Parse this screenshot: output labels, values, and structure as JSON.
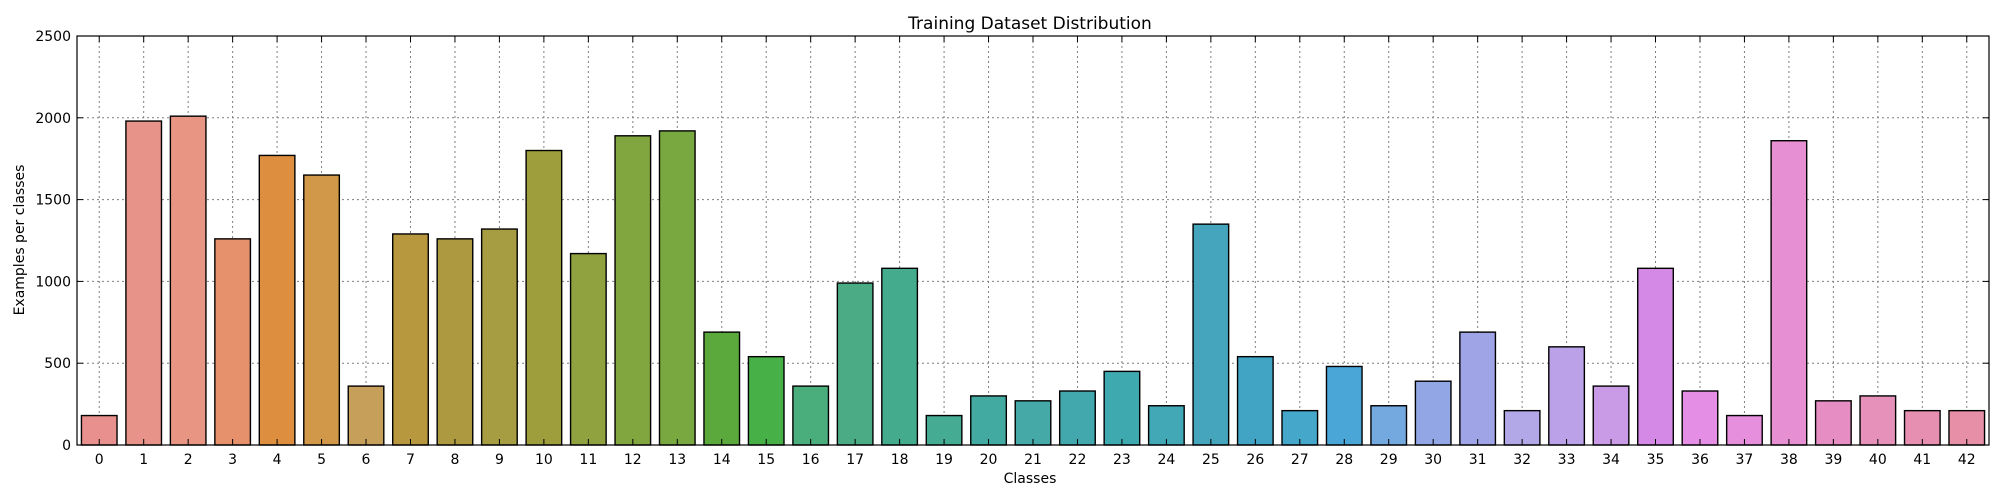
{
  "chart_data": {
    "type": "bar",
    "title": "Training Dataset Distribution",
    "xlabel": "Classes",
    "ylabel": "Examples per classes",
    "categories": [
      "0",
      "1",
      "2",
      "3",
      "4",
      "5",
      "6",
      "7",
      "8",
      "9",
      "10",
      "11",
      "12",
      "13",
      "14",
      "15",
      "16",
      "17",
      "18",
      "19",
      "20",
      "21",
      "22",
      "23",
      "24",
      "25",
      "26",
      "27",
      "28",
      "29",
      "30",
      "31",
      "32",
      "33",
      "34",
      "35",
      "36",
      "37",
      "38",
      "39",
      "40",
      "41",
      "42"
    ],
    "values": [
      180,
      1980,
      2010,
      1260,
      1770,
      1650,
      360,
      1290,
      1260,
      1320,
      1800,
      1170,
      1890,
      1920,
      690,
      540,
      360,
      990,
      1080,
      180,
      300,
      270,
      330,
      450,
      240,
      1350,
      540,
      210,
      480,
      240,
      390,
      690,
      210,
      600,
      360,
      1080,
      330,
      180,
      1860,
      270,
      300,
      210,
      210
    ],
    "colors": [
      "#e8908d",
      "#e8938a",
      "#e89583",
      "#e6906c",
      "#dd8f3f",
      "#d09848",
      "#c6a05a",
      "#b7983f",
      "#ad9a40",
      "#a69c42",
      "#9e9f3c",
      "#90a23f",
      "#82a63f",
      "#78a83f",
      "#5ba93d",
      "#47b148",
      "#4aad7c",
      "#4aab85",
      "#45ab8d",
      "#46ab93",
      "#43aaa1",
      "#45a9a7",
      "#43a8ad",
      "#3fa9b0",
      "#42a8b6",
      "#44a5bc",
      "#42a4c4",
      "#45a7ca",
      "#4aa6d7",
      "#73a9df",
      "#92a5e4",
      "#9ea4e6",
      "#b3a8e7",
      "#bba1e7",
      "#c99be6",
      "#d489e6",
      "#e48fe5",
      "#e68fdc",
      "#e68fd2",
      "#e68dc4",
      "#e691ba",
      "#e68fb0",
      "#e68fa6"
    ],
    "ylim": [
      0,
      2500
    ],
    "yticks": [
      0,
      500,
      1000,
      1500,
      2000,
      2500
    ],
    "grid": true
  }
}
